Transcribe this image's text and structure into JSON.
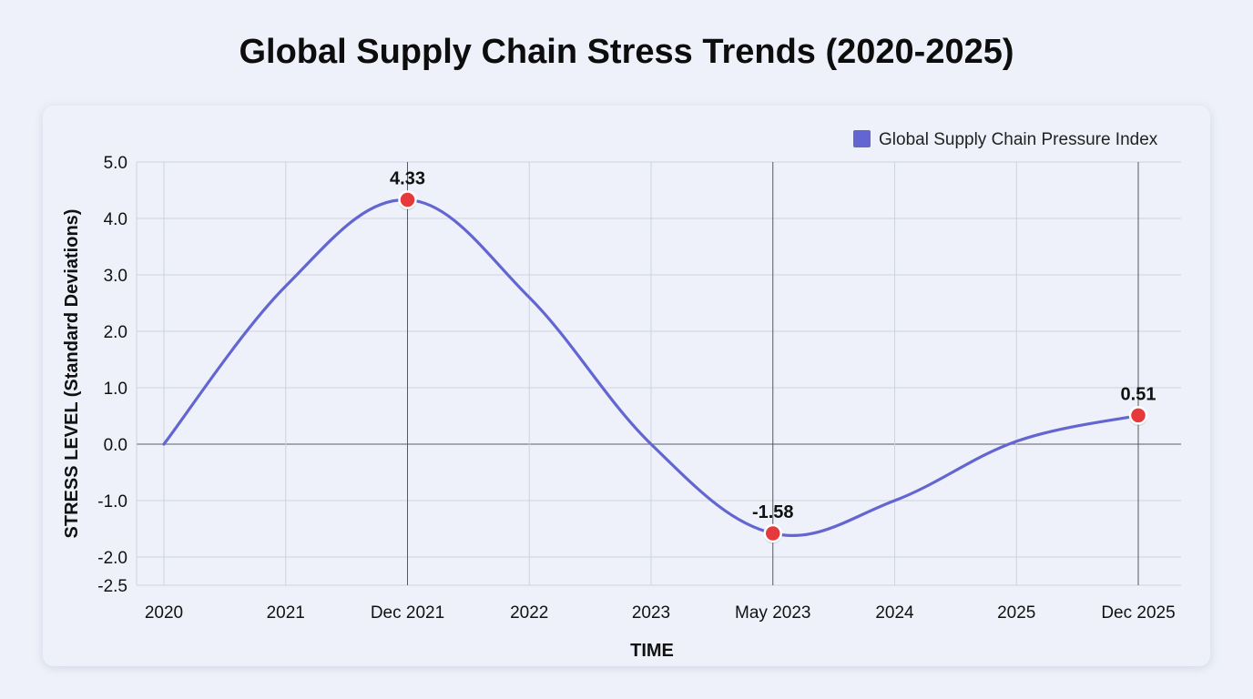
{
  "title": "Global Supply Chain Stress Trends (2020-2025)",
  "colors": {
    "line": "#6366d1",
    "marker": "#e5393c",
    "marker_stroke": "#ffffff",
    "grid": "#cfd2df",
    "zero_line": "#7a7d8a"
  },
  "chart_data": {
    "type": "line",
    "title": "Global Supply Chain Stress Trends (2020-2025)",
    "xlabel": "TIME",
    "ylabel": "STRESS LEVEL (Standard Deviations)",
    "ylim": [
      -2.5,
      5.0
    ],
    "yticks": [
      5.0,
      4.0,
      3.0,
      2.0,
      1.0,
      0.0,
      -1.0,
      -2.0,
      -2.5
    ],
    "ytick_labels": [
      "5.0",
      "4.0",
      "3.0",
      "2.0",
      "1.0",
      "0.0",
      "-1.0",
      "-2.0",
      "-2.5"
    ],
    "xticks": [
      "2020",
      "2021",
      "Dec 2021",
      "2022",
      "2023",
      "May 2023",
      "2024",
      "2025",
      "Dec 2025"
    ],
    "grid": true,
    "legend_position": "top-right",
    "series": [
      {
        "name": "Global Supply Chain Pressure Index",
        "color": "#6366d1",
        "points": [
          {
            "x": "2020",
            "y": 0.0
          },
          {
            "x": "2021",
            "y": 2.8
          },
          {
            "x": "Dec 2021",
            "y": 4.33
          },
          {
            "x": "2022",
            "y": 2.6
          },
          {
            "x": "2023",
            "y": 0.0
          },
          {
            "x": "May 2023",
            "y": -1.58
          },
          {
            "x": "2024",
            "y": -1.0
          },
          {
            "x": "2025",
            "y": 0.05
          },
          {
            "x": "Dec 2025",
            "y": 0.51
          }
        ]
      }
    ],
    "annotations": [
      {
        "x": "Dec 2021",
        "y": 4.33,
        "label": "4.33"
      },
      {
        "x": "May 2023",
        "y": -1.58,
        "label": "-1.58"
      },
      {
        "x": "Dec 2025",
        "y": 0.51,
        "label": "0.51"
      }
    ]
  }
}
